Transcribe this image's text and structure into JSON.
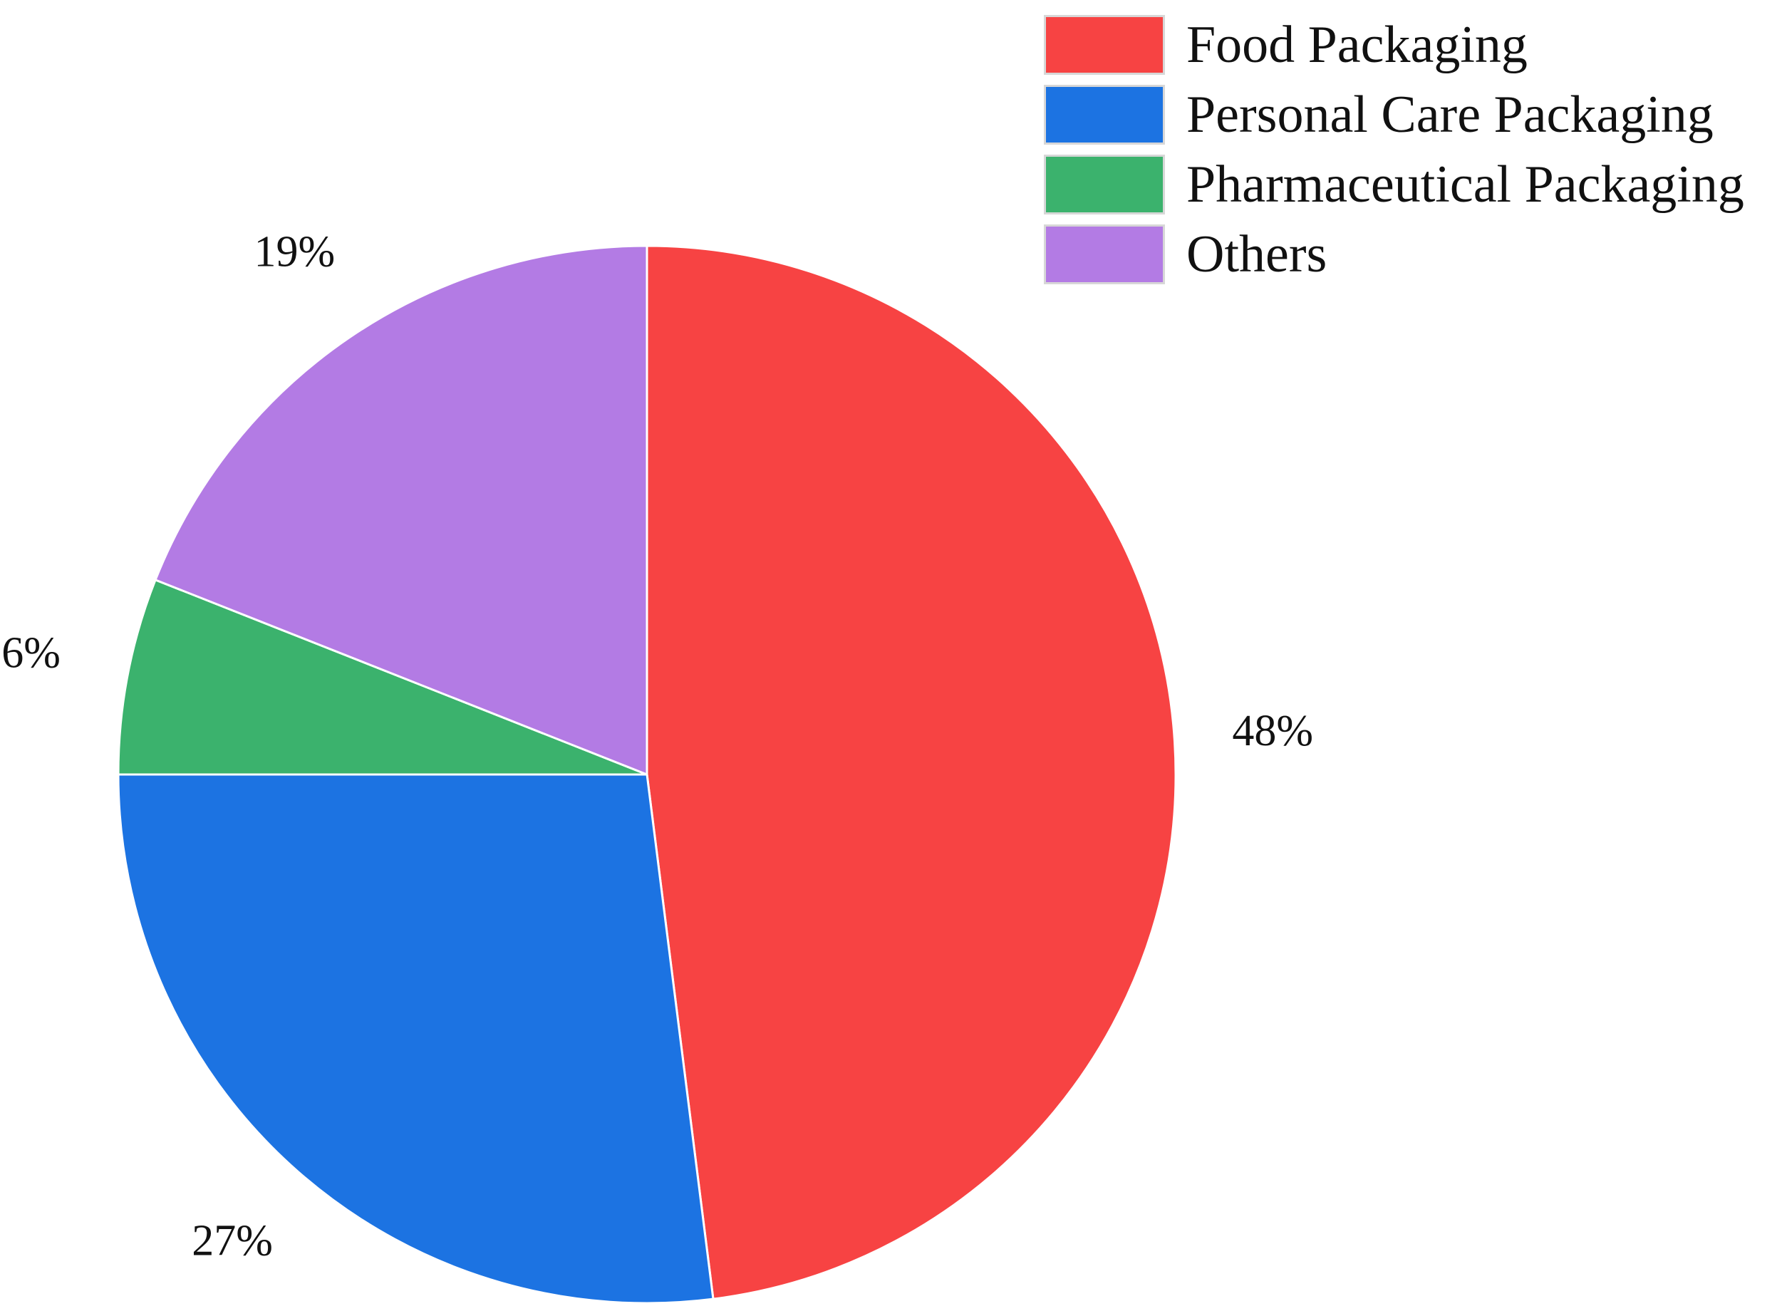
{
  "chart_data": {
    "type": "pie",
    "start_angle_deg": 0,
    "direction": "clockwise",
    "slices": [
      {
        "label": "Food Packaging",
        "value": 48,
        "display": "48%",
        "color": "#f74343"
      },
      {
        "label": "Personal Care Packaging",
        "value": 27,
        "display": "27%",
        "color": "#1c73e2"
      },
      {
        "label": "Pharmaceutical Packaging",
        "value": 6,
        "display": "6%",
        "color": "#3bb26d"
      },
      {
        "label": "Others",
        "value": 19,
        "display": "19%",
        "color": "#b37be4"
      }
    ],
    "legend_position": "top-right",
    "slice_border_color": "#ffffff"
  }
}
